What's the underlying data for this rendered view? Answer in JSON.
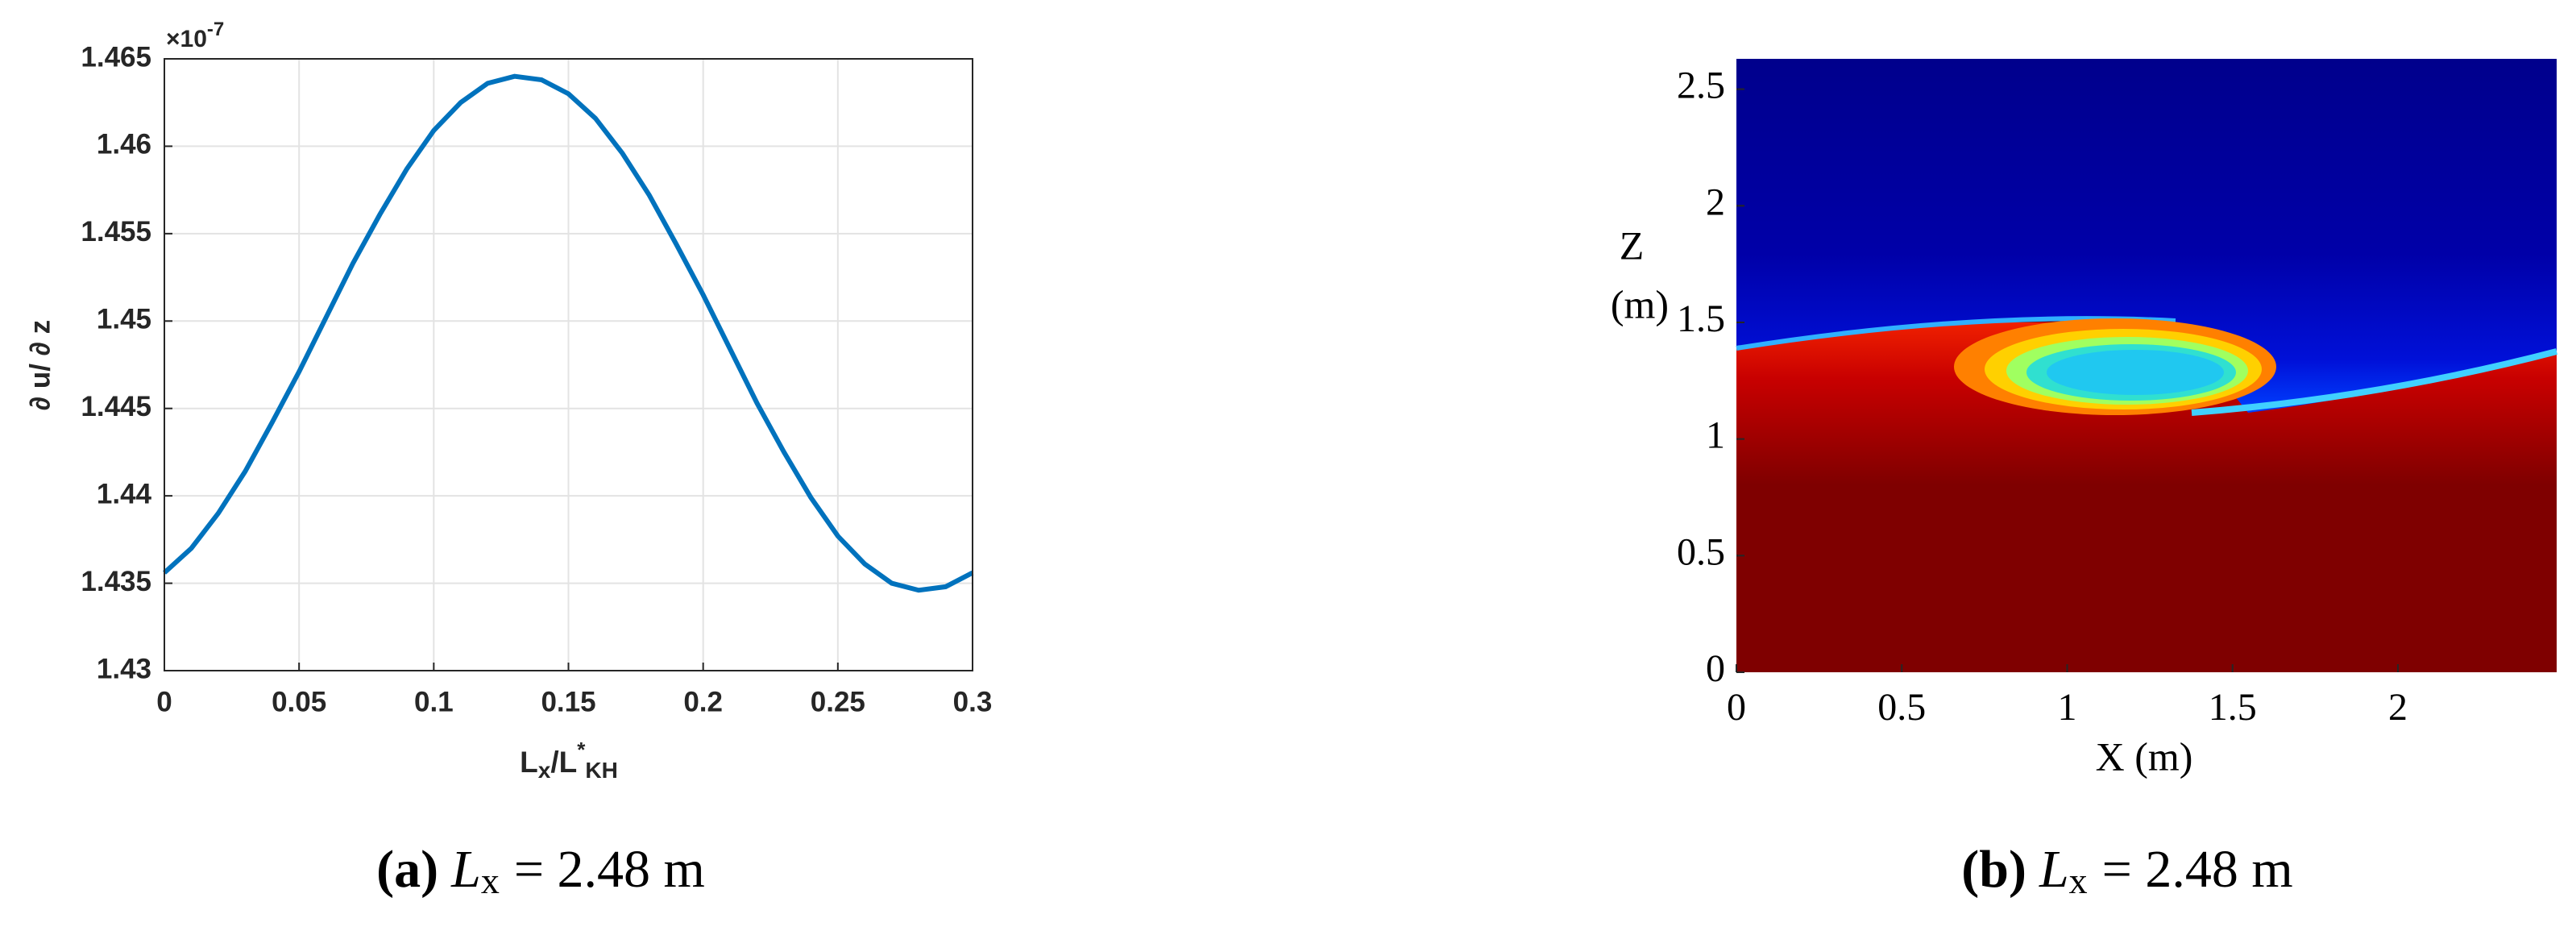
{
  "chart_data": [
    {
      "type": "line",
      "x": [
        0,
        0.01,
        0.02,
        0.03,
        0.04,
        0.05,
        0.06,
        0.07,
        0.08,
        0.09,
        0.1,
        0.11,
        0.12,
        0.13,
        0.14,
        0.15,
        0.16,
        0.17,
        0.18,
        0.19,
        0.2,
        0.21,
        0.22,
        0.23,
        0.24,
        0.25,
        0.26,
        0.27,
        0.28,
        0.29,
        0.3
      ],
      "values": [
        1.4356,
        1.437,
        1.439,
        1.4414,
        1.4442,
        1.4471,
        1.4502,
        1.4533,
        1.4561,
        1.4587,
        1.4609,
        1.4625,
        1.4636,
        1.464,
        1.4638,
        1.463,
        1.4616,
        1.4596,
        1.4572,
        1.4544,
        1.4515,
        1.4484,
        1.4453,
        1.4425,
        1.4399,
        1.4377,
        1.4361,
        1.435,
        1.4346,
        1.4348,
        1.4356
      ],
      "color": "#0072bd",
      "xlim": [
        0,
        0.3
      ],
      "xticks": [
        0,
        0.05,
        0.1,
        0.15,
        0.2,
        0.25,
        0.3
      ],
      "ylim": [
        1.43,
        1.465
      ],
      "yticks": [
        1.43,
        1.435,
        1.44,
        1.445,
        1.45,
        1.455,
        1.46,
        1.465
      ],
      "grid": true,
      "y_multiplier": {
        "base": "×10",
        "exponent": "-7"
      },
      "ylabel": "∂ u/ ∂ z",
      "xlabel": [
        "L",
        "x",
        "/L",
        "*",
        "KH"
      ],
      "caption": {
        "tag": "(a)",
        "symbol": "L",
        "subscript": "x",
        "text": "= 2.48 m"
      }
    },
    {
      "type": "heatmap",
      "xlim": [
        0,
        2.48
      ],
      "xticks": [
        0,
        0.5,
        1,
        1.5,
        2
      ],
      "ylim": [
        0,
        2.63
      ],
      "yticks": [
        0,
        0.5,
        1,
        1.5,
        2,
        2.5
      ],
      "xlabel": "X (m)",
      "ylabel": [
        "Z",
        "(m)"
      ],
      "caption": {
        "tag": "(b)",
        "symbol": "L",
        "subscript": "x",
        "text": "= 2.48 m"
      }
    }
  ]
}
